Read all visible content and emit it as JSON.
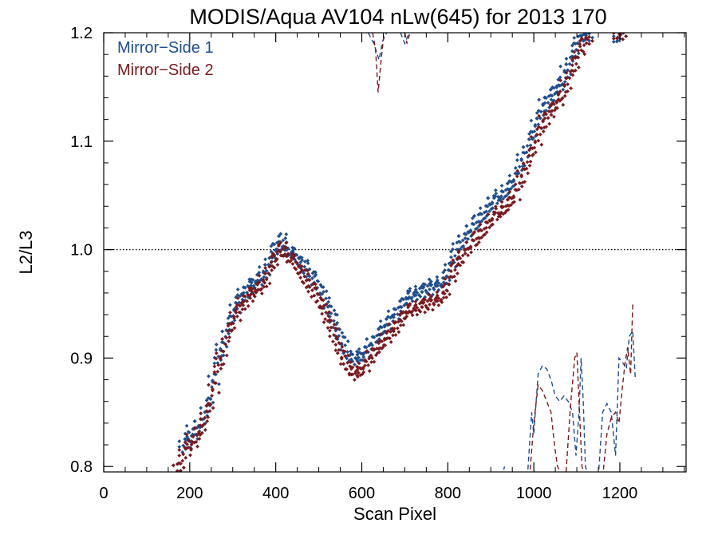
{
  "chart_data": {
    "type": "scatter",
    "title": "MODIS/Aqua AV104 nLw(645) for 2013 170",
    "xlabel": "Scan Pixel",
    "ylabel": "L2/L3",
    "xlim": [
      0,
      1354
    ],
    "ylim": [
      0.795,
      1.2
    ],
    "xticks": [
      0,
      200,
      400,
      600,
      800,
      1000,
      1200
    ],
    "xtick_labels": [
      "0",
      "200",
      "400",
      "600",
      "800",
      "1000",
      "1200"
    ],
    "yticks": [
      0.8,
      0.9,
      1.0,
      1.1,
      1.2
    ],
    "ytick_labels": [
      "0.8",
      "0.9",
      "1.0",
      "1.1",
      "1.2"
    ],
    "reference_line": {
      "y": 1.0,
      "style": "dotted"
    },
    "legend": {
      "position": "top-left"
    },
    "series": [
      {
        "name": "Mirror−Side 1",
        "color": "#1f4e8c",
        "marker": "diamond",
        "points": [
          [
            175,
            0.8
          ],
          [
            185,
            0.82
          ],
          [
            195,
            0.83
          ],
          [
            205,
            0.825
          ],
          [
            215,
            0.835
          ],
          [
            225,
            0.84
          ],
          [
            235,
            0.85
          ],
          [
            245,
            0.86
          ],
          [
            255,
            0.88
          ],
          [
            265,
            0.9
          ],
          [
            275,
            0.91
          ],
          [
            285,
            0.925
          ],
          [
            295,
            0.935
          ],
          [
            305,
            0.945
          ],
          [
            315,
            0.955
          ],
          [
            325,
            0.96
          ],
          [
            335,
            0.965
          ],
          [
            345,
            0.968
          ],
          [
            355,
            0.97
          ],
          [
            365,
            0.975
          ],
          [
            375,
            0.98
          ],
          [
            385,
            0.99
          ],
          [
            395,
            1.0
          ],
          [
            405,
            1.005
          ],
          [
            415,
            1.01
          ],
          [
            425,
            1.0
          ],
          [
            435,
            0.998
          ],
          [
            445,
            0.995
          ],
          [
            455,
            0.99
          ],
          [
            465,
            0.985
          ],
          [
            475,
            0.98
          ],
          [
            485,
            0.975
          ],
          [
            495,
            0.97
          ],
          [
            505,
            0.962
          ],
          [
            515,
            0.955
          ],
          [
            525,
            0.945
          ],
          [
            535,
            0.935
          ],
          [
            545,
            0.925
          ],
          [
            555,
            0.915
          ],
          [
            565,
            0.905
          ],
          [
            575,
            0.9
          ],
          [
            585,
            0.9
          ],
          [
            595,
            0.902
          ],
          [
            605,
            0.905
          ],
          [
            615,
            0.91
          ],
          [
            625,
            0.915
          ],
          [
            635,
            0.92
          ],
          [
            645,
            0.925
          ],
          [
            655,
            0.93
          ],
          [
            665,
            0.935
          ],
          [
            675,
            0.94
          ],
          [
            685,
            0.945
          ],
          [
            695,
            0.95
          ],
          [
            705,
            0.955
          ],
          [
            715,
            0.958
          ],
          [
            725,
            0.96
          ],
          [
            735,
            0.962
          ],
          [
            745,
            0.963
          ],
          [
            755,
            0.965
          ],
          [
            765,
            0.966
          ],
          [
            775,
            0.968
          ],
          [
            785,
            0.97
          ],
          [
            795,
            0.975
          ],
          [
            805,
            0.985
          ],
          [
            815,
            0.995
          ],
          [
            825,
            1.005
          ],
          [
            835,
            1.01
          ],
          [
            845,
            1.015
          ],
          [
            855,
            1.02
          ],
          [
            865,
            1.025
          ],
          [
            875,
            1.03
          ],
          [
            885,
            1.035
          ],
          [
            895,
            1.04
          ],
          [
            905,
            1.045
          ],
          [
            915,
            1.048
          ],
          [
            925,
            1.05
          ],
          [
            935,
            1.055
          ],
          [
            945,
            1.06
          ],
          [
            955,
            1.065
          ],
          [
            965,
            1.075
          ],
          [
            975,
            1.085
          ],
          [
            985,
            1.095
          ],
          [
            995,
            1.105
          ],
          [
            1005,
            1.115
          ],
          [
            1015,
            1.125
          ],
          [
            1025,
            1.135
          ],
          [
            1035,
            1.14
          ],
          [
            1045,
            1.145
          ],
          [
            1055,
            1.15
          ],
          [
            1065,
            1.155
          ],
          [
            1075,
            1.165
          ],
          [
            1085,
            1.175
          ],
          [
            1095,
            1.185
          ],
          [
            1105,
            1.195
          ],
          [
            1115,
            1.2
          ],
          [
            1125,
            1.198
          ],
          [
            1195,
            1.195
          ],
          [
            1205,
            1.2
          ]
        ]
      },
      {
        "name": "Mirror−Side 2",
        "color": "#7a1a1f",
        "marker": "diamond",
        "points": [
          [
            175,
            0.8
          ],
          [
            185,
            0.812
          ],
          [
            195,
            0.822
          ],
          [
            205,
            0.818
          ],
          [
            215,
            0.828
          ],
          [
            225,
            0.834
          ],
          [
            235,
            0.845
          ],
          [
            245,
            0.855
          ],
          [
            255,
            0.872
          ],
          [
            265,
            0.892
          ],
          [
            275,
            0.902
          ],
          [
            285,
            0.918
          ],
          [
            295,
            0.928
          ],
          [
            305,
            0.938
          ],
          [
            315,
            0.946
          ],
          [
            325,
            0.952
          ],
          [
            335,
            0.957
          ],
          [
            345,
            0.96
          ],
          [
            355,
            0.962
          ],
          [
            365,
            0.966
          ],
          [
            375,
            0.972
          ],
          [
            385,
            0.982
          ],
          [
            395,
            0.99
          ],
          [
            405,
            0.996
          ],
          [
            415,
            1.002
          ],
          [
            425,
            0.995
          ],
          [
            435,
            0.992
          ],
          [
            445,
            0.988
          ],
          [
            455,
            0.982
          ],
          [
            465,
            0.976
          ],
          [
            475,
            0.97
          ],
          [
            485,
            0.964
          ],
          [
            495,
            0.958
          ],
          [
            505,
            0.95
          ],
          [
            515,
            0.942
          ],
          [
            525,
            0.932
          ],
          [
            535,
            0.922
          ],
          [
            545,
            0.912
          ],
          [
            555,
            0.902
          ],
          [
            565,
            0.895
          ],
          [
            575,
            0.888
          ],
          [
            585,
            0.886
          ],
          [
            595,
            0.888
          ],
          [
            605,
            0.892
          ],
          [
            615,
            0.898
          ],
          [
            625,
            0.904
          ],
          [
            635,
            0.908
          ],
          [
            645,
            0.912
          ],
          [
            655,
            0.918
          ],
          [
            665,
            0.922
          ],
          [
            675,
            0.928
          ],
          [
            685,
            0.932
          ],
          [
            695,
            0.938
          ],
          [
            705,
            0.942
          ],
          [
            715,
            0.945
          ],
          [
            725,
            0.946
          ],
          [
            735,
            0.948
          ],
          [
            745,
            0.949
          ],
          [
            755,
            0.951
          ],
          [
            765,
            0.952
          ],
          [
            775,
            0.954
          ],
          [
            785,
            0.956
          ],
          [
            795,
            0.962
          ],
          [
            805,
            0.972
          ],
          [
            815,
            0.982
          ],
          [
            825,
            0.99
          ],
          [
            835,
            0.996
          ],
          [
            845,
            1.0
          ],
          [
            855,
            1.005
          ],
          [
            865,
            1.01
          ],
          [
            875,
            1.015
          ],
          [
            885,
            1.02
          ],
          [
            895,
            1.025
          ],
          [
            905,
            1.03
          ],
          [
            915,
            1.033
          ],
          [
            925,
            1.036
          ],
          [
            935,
            1.04
          ],
          [
            945,
            1.045
          ],
          [
            955,
            1.05
          ],
          [
            965,
            1.06
          ],
          [
            975,
            1.07
          ],
          [
            985,
            1.08
          ],
          [
            995,
            1.09
          ],
          [
            1005,
            1.1
          ],
          [
            1015,
            1.11
          ],
          [
            1025,
            1.12
          ],
          [
            1035,
            1.126
          ],
          [
            1045,
            1.13
          ],
          [
            1055,
            1.136
          ],
          [
            1065,
            1.142
          ],
          [
            1075,
            1.152
          ],
          [
            1085,
            1.162
          ],
          [
            1095,
            1.172
          ],
          [
            1105,
            1.182
          ],
          [
            1115,
            1.19
          ],
          [
            1125,
            1.195
          ],
          [
            1195,
            1.198
          ],
          [
            1205,
            1.2
          ]
        ]
      }
    ],
    "dashed_series": [
      {
        "name": "Mirror−Side 1",
        "color": "#1f4e8c",
        "segments": [
          [
            [
              615,
              1.2
            ],
            [
              628,
              1.19
            ],
            [
              640,
              1.175
            ],
            [
              648,
              1.192
            ],
            [
              658,
              1.2
            ]
          ],
          [
            [
              690,
              1.2
            ],
            [
              700,
              1.19
            ],
            [
              710,
              1.2
            ]
          ],
          [
            [
              925,
              0.79
            ],
            [
              932,
              0.8
            ]
          ],
          [
            [
              985,
              0.79
            ],
            [
              995,
              0.85
            ],
            [
              1000,
              0.83
            ],
            [
              1010,
              0.885
            ],
            [
              1020,
              0.893
            ],
            [
              1030,
              0.89
            ],
            [
              1040,
              0.88
            ],
            [
              1050,
              0.865
            ],
            [
              1060,
              0.86
            ],
            [
              1070,
              0.865
            ],
            [
              1080,
              0.86
            ],
            [
              1090,
              0.85
            ],
            [
              1098,
              0.81
            ],
            [
              1105,
              0.85
            ],
            [
              1110,
              0.9
            ],
            [
              1115,
              0.86
            ],
            [
              1120,
              0.8
            ],
            [
              1128,
              0.79
            ]
          ],
          [
            [
              1150,
              0.79
            ],
            [
              1160,
              0.85
            ],
            [
              1170,
              0.858
            ],
            [
              1180,
              0.85
            ],
            [
              1190,
              0.81
            ],
            [
              1198,
              0.9
            ],
            [
              1208,
              0.895
            ],
            [
              1215,
              0.89
            ],
            [
              1222,
              0.92
            ],
            [
              1230,
              0.925
            ],
            [
              1236,
              0.88
            ]
          ]
        ]
      },
      {
        "name": "Mirror−Side 2",
        "color": "#7a1a1f",
        "segments": [
          [
            [
              625,
              1.2
            ],
            [
              632,
              1.185
            ],
            [
              638,
              1.145
            ],
            [
              645,
              1.175
            ],
            [
              652,
              1.2
            ]
          ],
          [
            [
              700,
              1.2
            ],
            [
              705,
              1.19
            ],
            [
              712,
              1.2
            ]
          ],
          [
            [
              990,
              0.79
            ],
            [
              1000,
              0.84
            ],
            [
              1010,
              0.875
            ],
            [
              1020,
              0.87
            ],
            [
              1030,
              0.86
            ],
            [
              1040,
              0.85
            ],
            [
              1048,
              0.82
            ],
            [
              1055,
              0.8
            ],
            [
              1062,
              0.795
            ]
          ],
          [
            [
              1075,
              0.795
            ],
            [
              1085,
              0.855
            ],
            [
              1095,
              0.9
            ],
            [
              1100,
              0.905
            ],
            [
              1105,
              0.86
            ],
            [
              1112,
              0.8
            ],
            [
              1120,
              0.79
            ]
          ],
          [
            [
              1160,
              0.79
            ],
            [
              1170,
              0.83
            ],
            [
              1180,
              0.845
            ],
            [
              1190,
              0.85
            ],
            [
              1198,
              0.84
            ],
            [
              1205,
              0.87
            ],
            [
              1212,
              0.895
            ],
            [
              1218,
              0.91
            ],
            [
              1225,
              0.885
            ],
            [
              1230,
              0.95
            ]
          ]
        ]
      }
    ]
  }
}
